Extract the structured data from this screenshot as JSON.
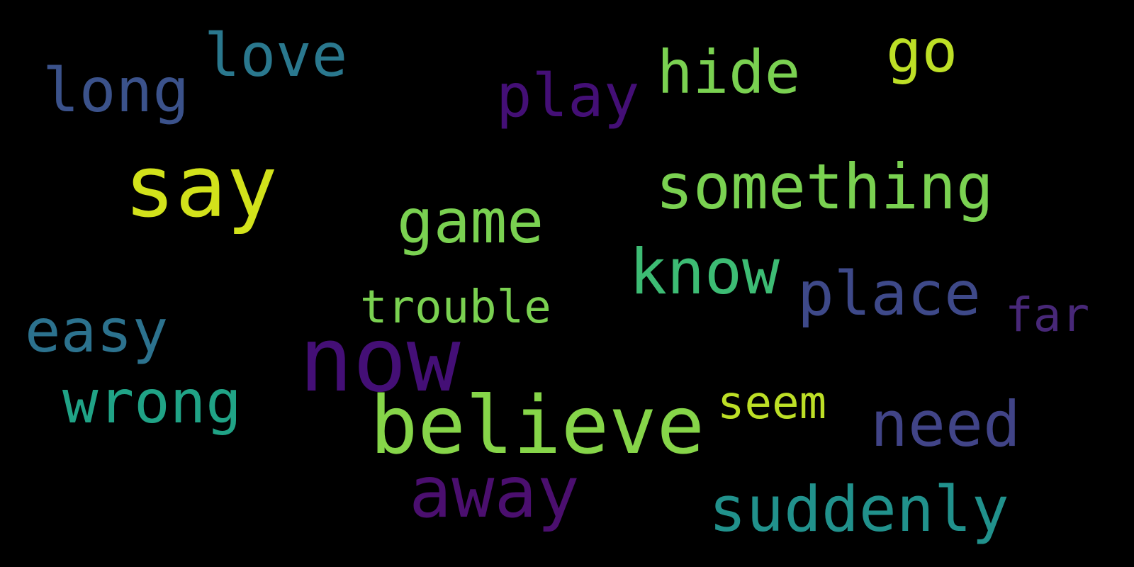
{
  "words": [
    {
      "id": "love",
      "text": "love",
      "color": "#2a788e"
    },
    {
      "id": "long",
      "text": "long",
      "color": "#3b528b"
    },
    {
      "id": "play",
      "text": "play",
      "color": "#440f76"
    },
    {
      "id": "hide",
      "text": "hide",
      "color": "#7ad151"
    },
    {
      "id": "go",
      "text": "go",
      "color": "#bddf26"
    },
    {
      "id": "say",
      "text": "say",
      "color": "#d2e21b"
    },
    {
      "id": "something",
      "text": "something",
      "color": "#7ad151"
    },
    {
      "id": "game",
      "text": "game",
      "color": "#7ad151"
    },
    {
      "id": "know",
      "text": "know",
      "color": "#3dbc74"
    },
    {
      "id": "place",
      "text": "place",
      "color": "#3e4989"
    },
    {
      "id": "far",
      "text": "far",
      "color": "#482878"
    },
    {
      "id": "trouble",
      "text": "trouble",
      "color": "#7ad151"
    },
    {
      "id": "easy",
      "text": "easy",
      "color": "#2c728e"
    },
    {
      "id": "now",
      "text": "now",
      "color": "#440f76"
    },
    {
      "id": "wrong",
      "text": "wrong",
      "color": "#20a386"
    },
    {
      "id": "believe",
      "text": "believe",
      "color": "#86d549"
    },
    {
      "id": "seem",
      "text": "seem",
      "color": "#bddf26"
    },
    {
      "id": "need",
      "text": "need",
      "color": "#414487"
    },
    {
      "id": "away",
      "text": "away",
      "color": "#4b0f6f"
    },
    {
      "id": "suddenly",
      "text": "suddenly",
      "color": "#21918c"
    }
  ]
}
